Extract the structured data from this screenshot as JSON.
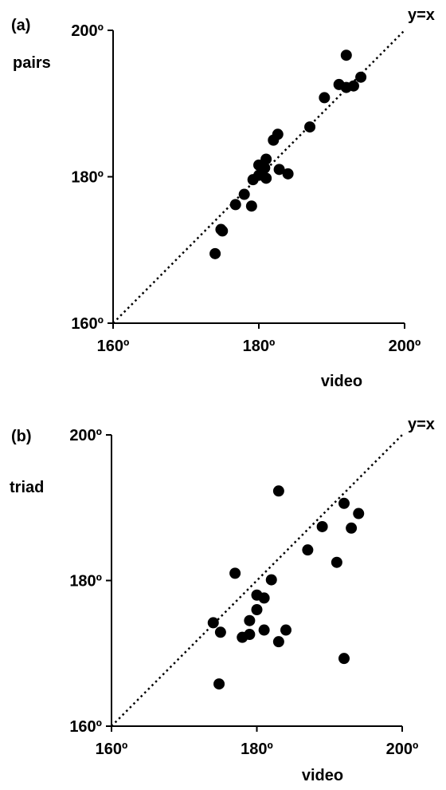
{
  "chart_data": [
    {
      "type": "scatter",
      "panel_label": "(a)",
      "xlabel": "video",
      "ylabel": "pairs",
      "reference_line_label": "y=x",
      "xlim": [
        160,
        200
      ],
      "ylim": [
        160,
        200
      ],
      "xticks": [
        "160º",
        "180º",
        "200º"
      ],
      "yticks": [
        "160º",
        "180º",
        "200º"
      ],
      "reference_line": [
        [
          160,
          160
        ],
        [
          200,
          200
        ]
      ],
      "points": [
        [
          174.0,
          169.5
        ],
        [
          174.8,
          172.8
        ],
        [
          175.0,
          172.6
        ],
        [
          176.8,
          176.2
        ],
        [
          178.0,
          177.6
        ],
        [
          179.0,
          176.0
        ],
        [
          179.2,
          179.6
        ],
        [
          180.0,
          180.2
        ],
        [
          180.0,
          181.6
        ],
        [
          180.8,
          181.2
        ],
        [
          181.0,
          179.8
        ],
        [
          181.0,
          182.4
        ],
        [
          182.0,
          185.0
        ],
        [
          182.6,
          185.8
        ],
        [
          182.8,
          181.0
        ],
        [
          184.0,
          180.4
        ],
        [
          187.0,
          186.8
        ],
        [
          189.0,
          190.8
        ],
        [
          191.0,
          192.6
        ],
        [
          192.0,
          192.2
        ],
        [
          192.0,
          196.6
        ],
        [
          193.0,
          192.4
        ],
        [
          194.0,
          193.6
        ]
      ]
    },
    {
      "type": "scatter",
      "panel_label": "(b)",
      "xlabel": "video",
      "ylabel": "triad",
      "reference_line_label": "y=x",
      "xlim": [
        160,
        200
      ],
      "ylim": [
        160,
        200
      ],
      "xticks": [
        "160º",
        "180º",
        "200º"
      ],
      "yticks": [
        "160º",
        "180º",
        "200º"
      ],
      "reference_line": [
        [
          160,
          160
        ],
        [
          200,
          200
        ]
      ],
      "points": [
        [
          174.0,
          174.2
        ],
        [
          174.8,
          165.8
        ],
        [
          175.0,
          172.9
        ],
        [
          177.0,
          181.0
        ],
        [
          178.0,
          172.2
        ],
        [
          179.0,
          172.6
        ],
        [
          179.0,
          174.5
        ],
        [
          180.0,
          176.0
        ],
        [
          180.0,
          178.0
        ],
        [
          181.0,
          177.6
        ],
        [
          181.0,
          173.2
        ],
        [
          182.0,
          180.1
        ],
        [
          183.0,
          171.6
        ],
        [
          183.0,
          192.3
        ],
        [
          184.0,
          173.2
        ],
        [
          187.0,
          184.2
        ],
        [
          189.0,
          187.4
        ],
        [
          191.0,
          182.5
        ],
        [
          192.0,
          169.3
        ],
        [
          192.0,
          190.6
        ],
        [
          193.0,
          187.2
        ],
        [
          194.0,
          189.2
        ]
      ]
    }
  ]
}
